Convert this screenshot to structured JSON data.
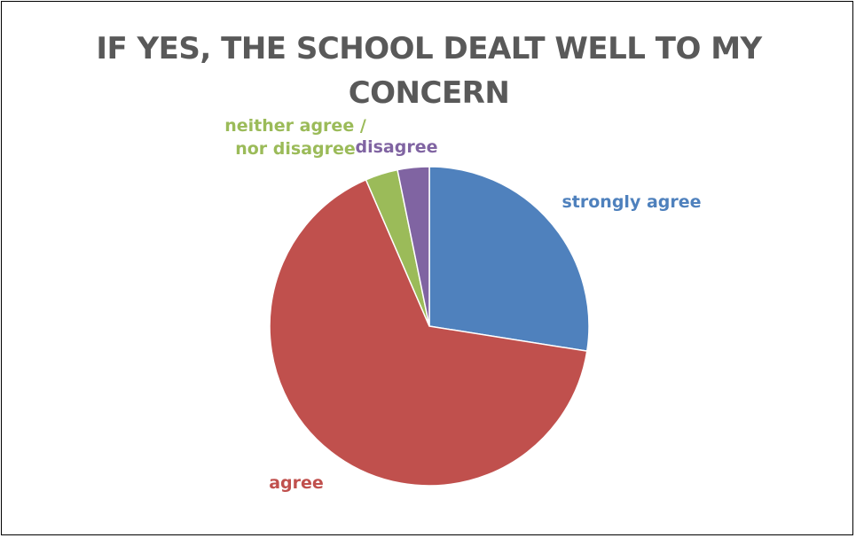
{
  "chart_data": {
    "type": "pie",
    "title_lines": [
      "IF YES, THE SCHOOL DEALT WELL TO MY",
      "CONCERN"
    ],
    "slices": [
      {
        "label": "strongly agree",
        "value": 27.5,
        "color": "#4F81BD"
      },
      {
        "label": "agree",
        "value": 66,
        "color": "#C0504D"
      },
      {
        "label": "neither agree / nor disagree",
        "label_lines": [
          "neither agree /",
          "nor disagree"
        ],
        "value": 3.3,
        "color": "#9BBB59"
      },
      {
        "label": "disagree",
        "value": 3.2,
        "color": "#8064A2"
      }
    ],
    "legend": "none",
    "data_labels": "category name"
  }
}
